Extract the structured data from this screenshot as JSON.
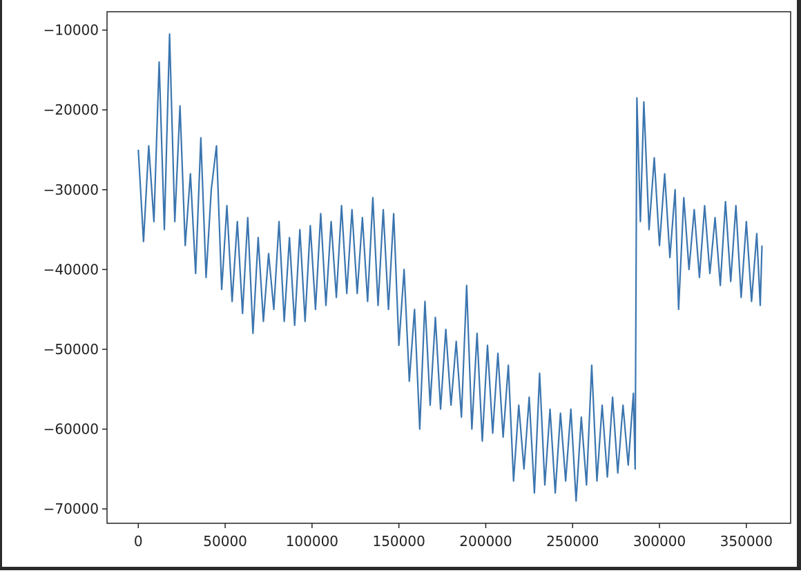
{
  "chart_data": {
    "type": "line",
    "x": [
      0,
      3000,
      6000,
      9000,
      12000,
      15000,
      18000,
      21000,
      24000,
      27000,
      30000,
      33000,
      36000,
      39000,
      42000,
      45000,
      48000,
      51000,
      54000,
      57000,
      60000,
      63000,
      66000,
      69000,
      72000,
      75000,
      78000,
      81000,
      84000,
      87000,
      90000,
      93000,
      96000,
      99000,
      102000,
      105000,
      108000,
      111000,
      114000,
      117000,
      120000,
      123000,
      126000,
      129000,
      132000,
      135000,
      138000,
      141000,
      144000,
      147000,
      150000,
      153000,
      156000,
      159000,
      162000,
      165000,
      168000,
      171000,
      174000,
      177000,
      180000,
      183000,
      186000,
      189000,
      192000,
      195000,
      198000,
      201000,
      204000,
      207000,
      210000,
      213000,
      216000,
      219000,
      222000,
      225000,
      228000,
      231000,
      234000,
      237000,
      240000,
      243000,
      246000,
      249000,
      252000,
      255000,
      258000,
      261000,
      264000,
      267000,
      270000,
      273000,
      276000,
      279000,
      282000,
      285000,
      286000,
      287000,
      289000,
      291000,
      294000,
      297000,
      300000,
      303000,
      306000,
      309000,
      311000,
      314000,
      317000,
      320000,
      323000,
      326000,
      329000,
      332000,
      335000,
      338000,
      341000,
      344000,
      347000,
      350000,
      353000,
      356000,
      358000,
      359000
    ],
    "series": [
      {
        "color": "#3b75af",
        "values": [
          -25000,
          -36500,
          -24500,
          -34000,
          -14000,
          -35000,
          -10500,
          -34000,
          -19500,
          -37000,
          -28000,
          -40500,
          -23500,
          -41000,
          -30000,
          -24500,
          -42500,
          -32000,
          -44000,
          -34000,
          -45500,
          -33500,
          -48000,
          -36000,
          -46500,
          -38000,
          -45000,
          -34000,
          -46500,
          -36000,
          -47000,
          -35000,
          -46500,
          -34500,
          -45000,
          -33000,
          -44500,
          -34000,
          -43500,
          -32000,
          -43000,
          -32500,
          -43000,
          -33500,
          -44000,
          -31000,
          -44500,
          -32500,
          -45000,
          -33000,
          -49500,
          -40000,
          -54000,
          -45000,
          -60000,
          -44000,
          -57000,
          -46000,
          -57500,
          -47500,
          -57000,
          -49000,
          -58500,
          -42000,
          -60000,
          -48000,
          -61500,
          -49500,
          -60500,
          -50500,
          -61000,
          -52000,
          -66500,
          -57000,
          -65000,
          -56000,
          -68000,
          -53000,
          -67000,
          -57500,
          -68000,
          -58000,
          -66500,
          -57500,
          -69000,
          -58500,
          -67000,
          -52000,
          -66500,
          -57000,
          -66000,
          -56000,
          -65500,
          -57000,
          -64500,
          -55500,
          -65000,
          -18500,
          -34000,
          -19000,
          -35000,
          -26000,
          -37000,
          -28000,
          -38500,
          -30000,
          -45000,
          -31000,
          -40000,
          -32500,
          -41000,
          -32000,
          -40500,
          -33500,
          -42000,
          -31500,
          -41500,
          -32000,
          -43500,
          -34000,
          -44000,
          -35500,
          -44500,
          -37000
        ]
      }
    ],
    "xlim": [
      -18000,
      375500
    ],
    "ylim": [
      -71800,
      -7700
    ],
    "xticks": [
      0,
      50000,
      100000,
      150000,
      200000,
      250000,
      300000,
      350000
    ],
    "yticks": [
      {
        "value": -10000,
        "label": "−10000"
      },
      {
        "value": -20000,
        "label": "−20000"
      },
      {
        "value": -30000,
        "label": "−30000"
      },
      {
        "value": -40000,
        "label": "−40000"
      },
      {
        "value": -50000,
        "label": "−50000"
      },
      {
        "value": -60000,
        "label": "−60000"
      },
      {
        "value": -70000,
        "label": "−70000"
      }
    ],
    "grid": false
  }
}
